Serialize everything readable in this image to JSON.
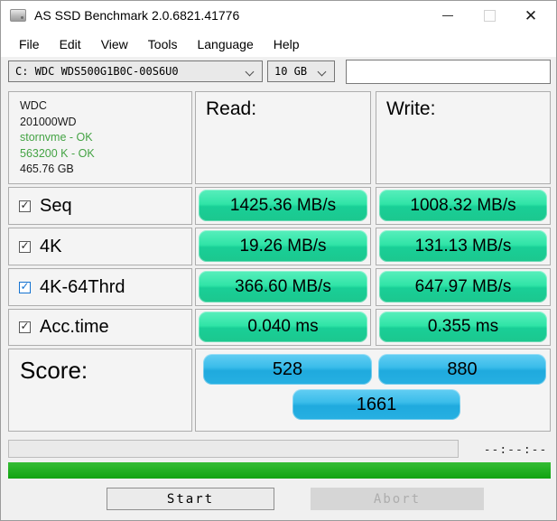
{
  "window": {
    "title": "AS SSD Benchmark 2.0.6821.41776"
  },
  "menu": {
    "items": [
      "File",
      "Edit",
      "View",
      "Tools",
      "Language",
      "Help"
    ]
  },
  "toolbar": {
    "drive_combo_value": "C: WDC WDS500G1B0C-00S6U0",
    "size_combo_value": "10 GB",
    "text_field_value": ""
  },
  "drive_info": {
    "model": "WDC",
    "firmware": "201000WD",
    "driver_status": "stornvme - OK",
    "alignment_status": "563200 K - OK",
    "capacity": "465.76 GB"
  },
  "results": {
    "read_header": "Read:",
    "write_header": "Write:",
    "rows": [
      {
        "label": "Seq",
        "checked": true,
        "checkbox_style": "normal",
        "read": "1425.36 MB/s",
        "write": "1008.32 MB/s"
      },
      {
        "label": "4K",
        "checked": true,
        "checkbox_style": "normal",
        "read": "19.26 MB/s",
        "write": "131.13 MB/s"
      },
      {
        "label": "4K-64Thrd",
        "checked": true,
        "checkbox_style": "focused-blue",
        "read": "366.60 MB/s",
        "write": "647.97 MB/s"
      },
      {
        "label": "Acc.time",
        "checked": true,
        "checkbox_style": "normal",
        "read": "0.040 ms",
        "write": "0.355 ms"
      }
    ]
  },
  "score": {
    "label": "Score:",
    "read_score": "528",
    "write_score": "880",
    "total_score": "1661"
  },
  "status_bar": {
    "elapsed_time": "--:--:--",
    "progress_percent": 0
  },
  "actions": {
    "start_label": "Start",
    "abort_label": "Abort",
    "abort_enabled": false
  },
  "colors": {
    "result_pill_green": "#2BE0A1",
    "score_pill_blue": "#2FB9E8",
    "ok_text_green": "#44A344",
    "progress_bar_green": "#24B124",
    "focused_checkbox_blue": "#1673D1"
  }
}
